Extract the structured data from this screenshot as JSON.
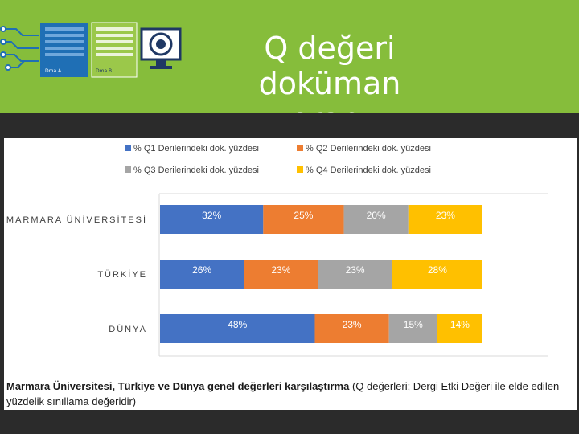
{
  "slide": {
    "title_line1": "Q değeri doküman",
    "title_line2": "oranı"
  },
  "logo": {
    "left_label": "Dma A",
    "right_label": "Dma B"
  },
  "colors": {
    "header_bg": "#86bd3b",
    "q1": "#4472c4",
    "q2": "#ed7d31",
    "q3": "#a5a5a5",
    "q4": "#ffc000"
  },
  "chart_data": {
    "type": "bar",
    "orientation": "horizontal",
    "stacked": true,
    "categories": [
      "MARMARA ÜNİVERSİTESİ",
      "TÜRKİYE",
      "DÜNYA"
    ],
    "series": [
      {
        "name": "% Q1 Derilerindeki dok. yüzdesi",
        "values": [
          32,
          26,
          48
        ],
        "labels": [
          "32%",
          "26%",
          "48%"
        ],
        "color": "#4472c4"
      },
      {
        "name": "% Q2 Derilerindeki dok. yüzdesi",
        "values": [
          25,
          23,
          23
        ],
        "labels": [
          "25%",
          "23%",
          "23%"
        ],
        "color": "#ed7d31"
      },
      {
        "name": "% Q3 Derilerindeki dok. yüzdesi",
        "values": [
          20,
          23,
          15
        ],
        "labels": [
          "20%",
          "23%",
          "15%"
        ],
        "color": "#a5a5a5"
      },
      {
        "name": "% Q4 Derilerindeki dok. yüzdesi",
        "values": [
          23,
          28,
          14
        ],
        "labels": [
          "23%",
          "28%",
          "14%"
        ],
        "color": "#ffc000"
      }
    ],
    "xlim": [
      0,
      100
    ],
    "grid": false,
    "legend": "top"
  },
  "caption": {
    "bold": "Marmara Üniversitesi, Türkiye ve Dünya genel değerleri karşılaştırma",
    "rest": " (Q değerleri; Dergi Etki Değeri ile elde edilen yüzdelik sınıllama değeridir)"
  }
}
